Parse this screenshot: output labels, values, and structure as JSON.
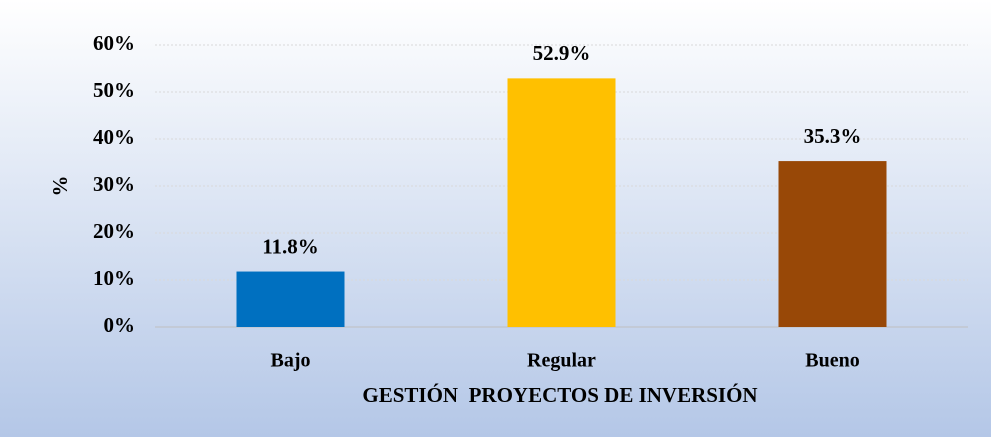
{
  "chart_data": {
    "type": "bar",
    "x_label": "GESTIÓN  PROYECTOS DE INVERSIÓN",
    "y_label": "%",
    "categories": [
      "Bajo",
      "Regular",
      "Bueno"
    ],
    "values": [
      11.8,
      52.9,
      35.3
    ],
    "value_labels": [
      "11.8%",
      "52.9%",
      "35.3%"
    ],
    "colors": [
      "#0070c0",
      "#ffc000",
      "#984807"
    ],
    "ylim": [
      0,
      60
    ],
    "yticks": [
      {
        "value": 0,
        "label": "0%"
      },
      {
        "value": 10,
        "label": "10%"
      },
      {
        "value": 20,
        "label": "20%"
      },
      {
        "value": 30,
        "label": "30%"
      },
      {
        "value": 40,
        "label": "40%"
      },
      {
        "value": 50,
        "label": "50%"
      },
      {
        "value": 60,
        "label": "60%"
      }
    ],
    "grid": true
  }
}
